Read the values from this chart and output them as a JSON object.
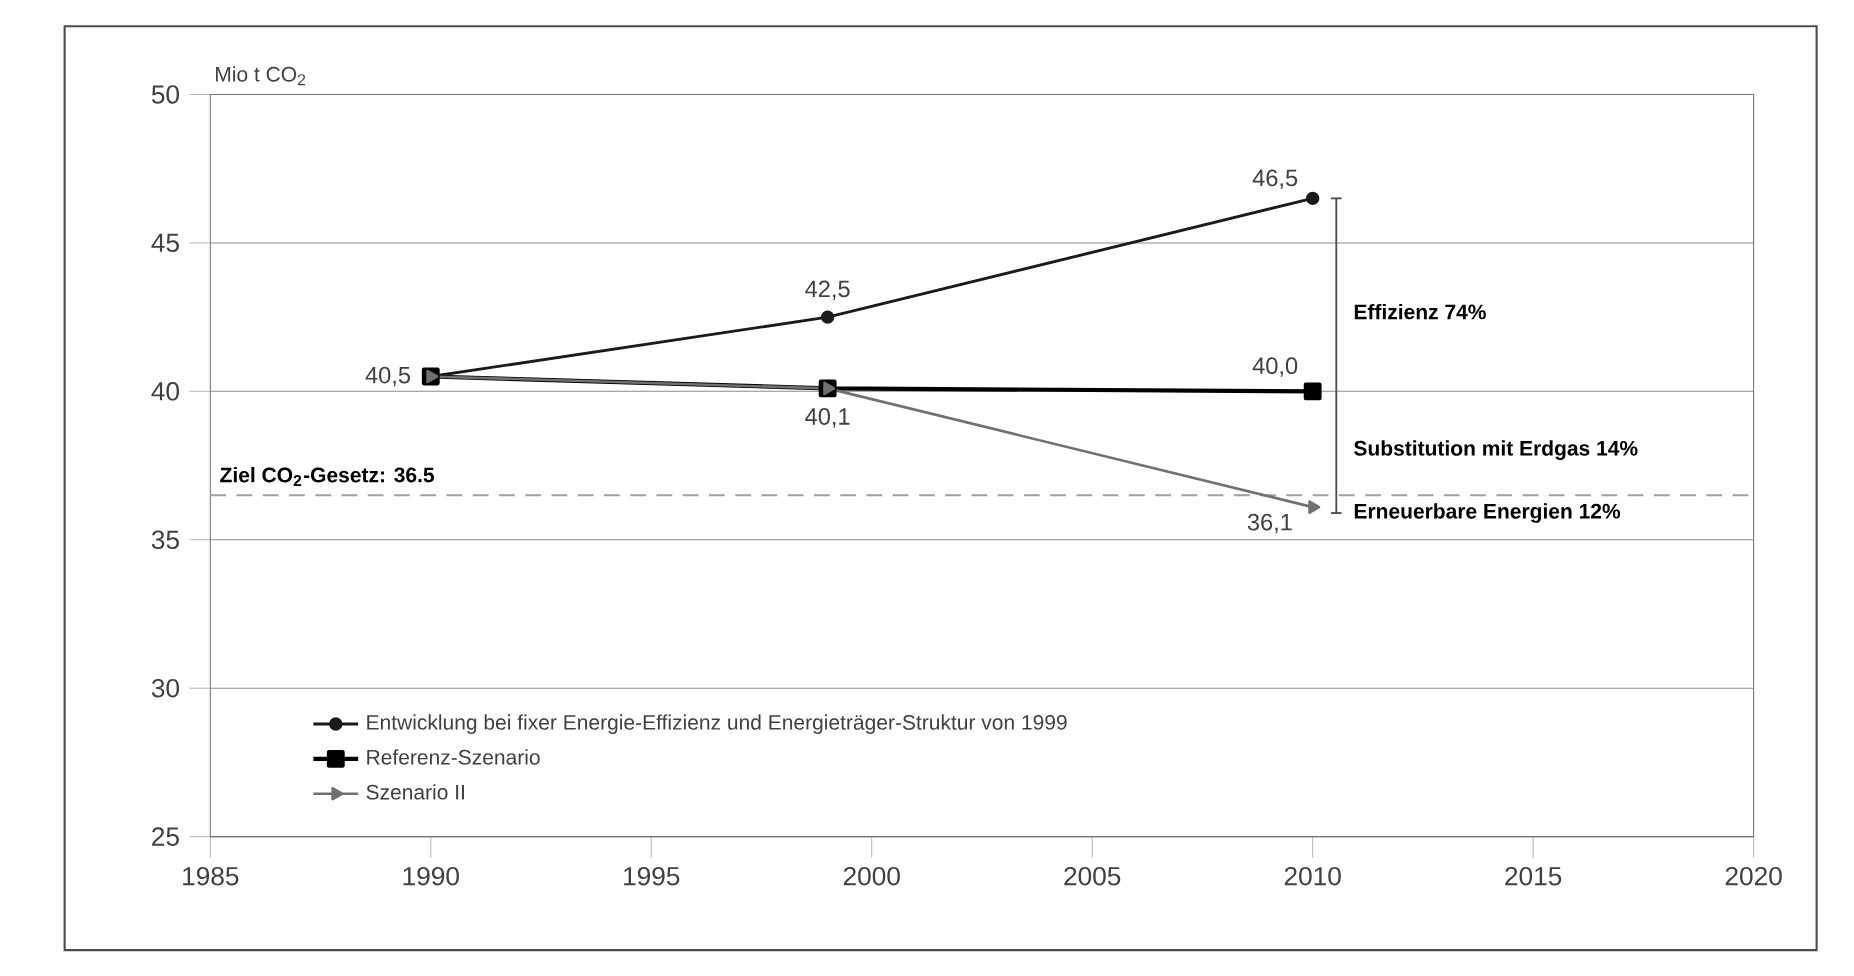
{
  "chart_data": {
    "type": "line",
    "ylabel": "Mio t CO$_{2}$",
    "xlim": [
      1985,
      2020
    ],
    "ylim": [
      25,
      50
    ],
    "xticks": [
      1985,
      1990,
      1995,
      2000,
      2005,
      2010,
      2015,
      2020
    ],
    "yticks": [
      25,
      30,
      35,
      40,
      45,
      50
    ],
    "grid": "y",
    "legend": "bottom left",
    "series": [
      {
        "name": "Entwicklung bei fixer Energie-Effizienz und Energieträger-Struktur von 1999",
        "color": "#1a1a1a",
        "marker": "circle",
        "x": [
          1990,
          1999,
          2010
        ],
        "values": [
          40.5,
          42.5,
          46.5
        ],
        "value_labels": [
          "40,5",
          "42,5",
          "46,5"
        ]
      },
      {
        "name": "Referenz-Szenario",
        "color": "#000000",
        "marker": "square",
        "x": [
          1990,
          1999,
          2010
        ],
        "values": [
          40.5,
          40.1,
          40.0
        ],
        "value_labels": [
          null,
          "40,1",
          "40,0"
        ]
      },
      {
        "name": "Szenario II",
        "color": "#707070",
        "marker": "triangle",
        "x": [
          1990,
          1999,
          2010
        ],
        "values": [
          40.5,
          40.1,
          36.1
        ],
        "value_labels": [
          null,
          null,
          "36,1"
        ]
      }
    ],
    "ref_lines": [
      {
        "axis": "y",
        "value": 36.5,
        "label": "Ziel CO$_{2}$-Gesetz: 36.5",
        "color": "#a0a0a0",
        "line_style": "dashed"
      }
    ],
    "annotations": [
      "Effizienz 74%",
      "Substitution mit Erdgas 14%",
      "Erneuerbare Energien 12%"
    ]
  }
}
